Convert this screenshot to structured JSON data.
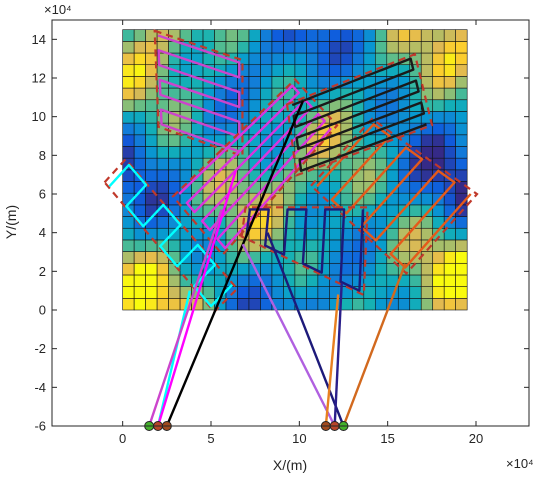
{
  "chart_data": {
    "type": "scatter",
    "title": "",
    "xlabel": "X/(m)",
    "ylabel": "Y/(m)",
    "x_exponent_label": "×10⁴",
    "y_exponent_label": "×10⁴",
    "xlim": [
      -40000,
      230000
    ],
    "ylim": [
      -60000,
      150000
    ],
    "xticks": [
      0,
      50000,
      100000,
      150000,
      200000
    ],
    "xtick_labels": [
      "0",
      "5",
      "10",
      "15",
      "20"
    ],
    "yticks": [
      -60000,
      -40000,
      -20000,
      0,
      20000,
      40000,
      60000,
      80000,
      100000,
      120000,
      140000
    ],
    "ytick_labels": [
      "-6",
      "-4",
      "-2",
      "0",
      "2",
      "4",
      "6",
      "8",
      "10",
      "12",
      "14"
    ],
    "grid": false,
    "heatmap": {
      "x_range": [
        0,
        195000
      ],
      "y_range": [
        0,
        145000
      ],
      "cols": 30,
      "rows": 24,
      "colormap": "parula"
    },
    "depots": [
      {
        "x": 15000,
        "y": -60000,
        "color": "#44b02c"
      },
      {
        "x": 20000,
        "y": -60000,
        "color": "#b8452a"
      },
      {
        "x": 25000,
        "y": -60000,
        "color": "#a14a1e"
      },
      {
        "x": 115000,
        "y": -60000,
        "color": "#a14a1e"
      },
      {
        "x": 120000,
        "y": -60000,
        "color": "#b8452a"
      },
      {
        "x": 125000,
        "y": -60000,
        "color": "#44b02c"
      }
    ],
    "regions": [
      {
        "color": "#00ffff",
        "corners": [
          [
            -7500,
            64000
          ],
          [
            3500,
            75000
          ],
          [
            62000,
            13000
          ],
          [
            50000,
            2000
          ]
        ]
      },
      {
        "color": "#cc44cc",
        "corners": [
          [
            20000,
            142000
          ],
          [
            66000,
            128000
          ],
          [
            66000,
            82000
          ],
          [
            22000,
            96000
          ]
        ]
      },
      {
        "color": "#dd33dd",
        "corners": [
          [
            32000,
            60000
          ],
          [
            96000,
            116000
          ],
          [
            118000,
            94000
          ],
          [
            58000,
            32000
          ]
        ]
      },
      {
        "color": "#e55a1a",
        "corners": [
          [
            110000,
            64000
          ],
          [
            142000,
            96000
          ],
          [
            197000,
            60000
          ],
          [
            160000,
            22000
          ]
        ]
      },
      {
        "color": "#1a1a1a",
        "corners": [
          [
            96000,
            106000
          ],
          [
            163000,
            130000
          ],
          [
            172000,
            96000
          ],
          [
            101000,
            72000
          ]
        ]
      },
      {
        "color": "#1d1a7a",
        "corners": [
          [
            70000,
            38000
          ],
          [
            72000,
            52000
          ],
          [
            136000,
            52000
          ],
          [
            134000,
            10000
          ]
        ]
      }
    ],
    "paths": [
      {
        "color": "#00ffff",
        "from": [
          20000,
          -60000
        ],
        "to": [
          38000,
          10000
        ]
      },
      {
        "color": "#cc44cc",
        "from": [
          15000,
          -60000
        ],
        "to": [
          56000,
          52000
        ]
      },
      {
        "color": "#ff00ff",
        "from": [
          20000,
          -60000
        ],
        "to": [
          64000,
          72000
        ]
      },
      {
        "color": "#000000",
        "from": [
          25000,
          -60000
        ],
        "to": [
          102000,
          108000
        ]
      },
      {
        "color": "#1d1a7a",
        "from": [
          125000,
          -60000
        ],
        "to": [
          82000,
          40000
        ]
      },
      {
        "color": "#b060e0",
        "from": [
          120000,
          -60000
        ],
        "to": [
          68000,
          34000
        ]
      },
      {
        "color": "#e88020",
        "from": [
          115000,
          -60000
        ],
        "to": [
          122000,
          8000
        ]
      },
      {
        "color": "#2a1f8a",
        "from": [
          120000,
          -60000
        ],
        "to": [
          124000,
          14000
        ]
      },
      {
        "color": "#d2691e",
        "from": [
          125000,
          -60000
        ],
        "to": [
          160000,
          24000
        ]
      }
    ]
  }
}
